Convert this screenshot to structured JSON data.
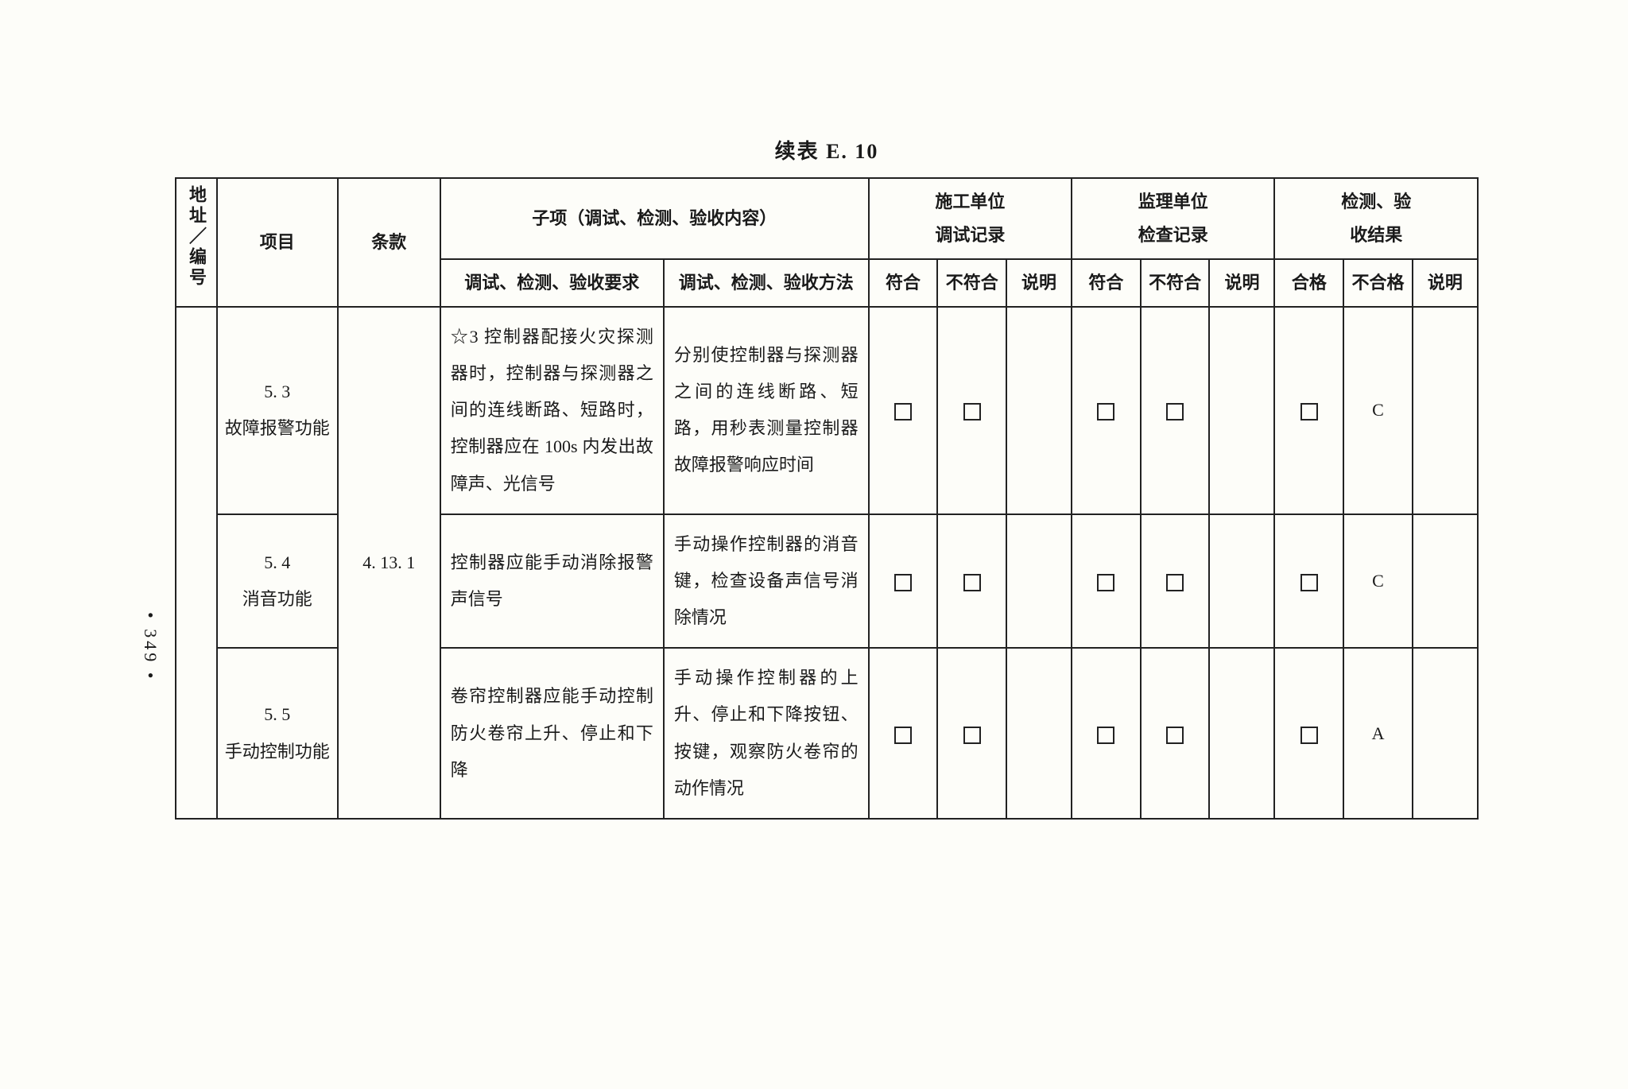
{
  "title": "续表 E. 10",
  "page_number": "• 349 •",
  "headers": {
    "addr": "地址／编号",
    "project": "项目",
    "clause": "条款",
    "subitem": "子项（调试、检测、验收内容）",
    "req": "调试、检测、验收要求",
    "method": "调试、检测、验收方法",
    "construction": "施工单位调试记录",
    "supervision": "监理单位检查记录",
    "inspection": "检测、验收结果",
    "conform": "符合",
    "nonconform": "不符合",
    "note": "说明",
    "pass": "合格",
    "fail": "不合格"
  },
  "clause_value": "4. 13. 1",
  "rows": [
    {
      "proj_num": "5. 3",
      "proj_name": "故障报警功能",
      "requirement": "☆3 控制器配接火灾探测器时，控制器与探测器之间的连线断路、短路时，控制器应在 100s 内发出故障声、光信号",
      "method": "分别使控制器与探测器之间的连线断路、短路，用秒表测量控制器故障报警响应时间",
      "fail_grade": "C"
    },
    {
      "proj_num": "5. 4",
      "proj_name": "消音功能",
      "requirement": "控制器应能手动消除报警声信号",
      "method": "手动操作控制器的消音键，检查设备声信号消除情况",
      "fail_grade": "C"
    },
    {
      "proj_num": "5. 5",
      "proj_name": "手动控制功能",
      "requirement": "卷帘控制器应能手动控制防火卷帘上升、停止和下降",
      "method": "手动操作控制器的上升、停止和下降按钮、按键，观察防火卷帘的动作情况",
      "fail_grade": "A"
    }
  ]
}
